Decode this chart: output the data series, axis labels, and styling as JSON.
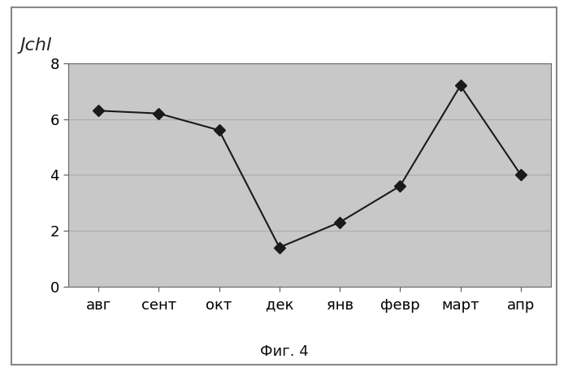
{
  "categories": [
    "авг",
    "сент",
    "окт",
    "дек",
    "янв",
    "февр",
    "март",
    "апр"
  ],
  "values": [
    6.3,
    6.2,
    5.6,
    1.4,
    2.3,
    3.6,
    7.2,
    4.0
  ],
  "ylabel_handwritten": "Jchl",
  "ylim": [
    0,
    8
  ],
  "yticks": [
    0,
    2,
    4,
    6,
    8
  ],
  "line_color": "#1a1a1a",
  "marker": "D",
  "marker_size": 7,
  "marker_facecolor": "#1a1a1a",
  "figure_bg_color": "#ffffff",
  "plot_bg_color": "#c8c8c8",
  "grid_color": "#aaaaaa",
  "outer_box_color": "#555555",
  "caption": "Фиг. 4",
  "caption_fontsize": 13,
  "tick_fontsize": 13,
  "ylabel_fontsize": 16,
  "figsize": [
    6.99,
    4.58
  ],
  "dpi": 100
}
